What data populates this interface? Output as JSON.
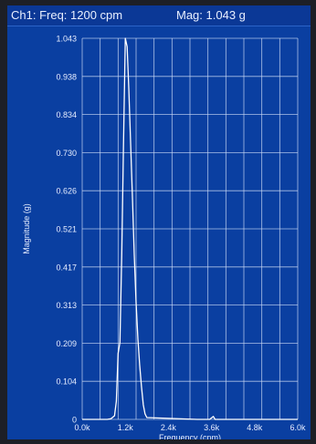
{
  "header": {
    "channel_freq": "Ch1: Freq: 1200 cpm",
    "magnitude": "Mag: 1.043 g"
  },
  "chart_data": {
    "type": "line",
    "title": "",
    "xlabel": "Frequency (cpm)",
    "ylabel": "Magnitude (g)",
    "xlim": [
      0,
      6000
    ],
    "ylim": [
      0,
      1.043
    ],
    "grid": true,
    "x_ticks": [
      0,
      1200,
      2400,
      3600,
      4800,
      6000
    ],
    "x_tick_labels": [
      "0.0k",
      "1.2k",
      "2.4k",
      "3.6k",
      "4.8k",
      "6.0k"
    ],
    "y_tick_labels": [
      "0",
      "0.104",
      "0.209",
      "0.313",
      "0.417",
      "0.521",
      "0.626",
      "0.730",
      "0.834",
      "0.938",
      "1.043"
    ],
    "series": [
      {
        "x": [
          0,
          700,
          800,
          900,
          950,
          1000,
          1050,
          1100,
          1150,
          1200,
          1250,
          1300,
          1350,
          1400,
          1450,
          1500,
          1550,
          1600,
          1650,
          1700,
          1750,
          1800,
          3200,
          3550,
          3600,
          3650,
          3700,
          4000,
          6000
        ],
        "y": [
          0,
          0,
          0.002,
          0.01,
          0.05,
          0.18,
          0.21,
          0.45,
          0.75,
          1.043,
          1.02,
          0.9,
          0.75,
          0.6,
          0.45,
          0.32,
          0.22,
          0.15,
          0.09,
          0.04,
          0.015,
          0.005,
          0,
          0,
          0.004,
          0.008,
          0,
          0,
          0
        ]
      }
    ],
    "colors": {
      "background": "#0a3fa1",
      "grid": "#c9d8f4",
      "trace": "#ffffff"
    }
  }
}
